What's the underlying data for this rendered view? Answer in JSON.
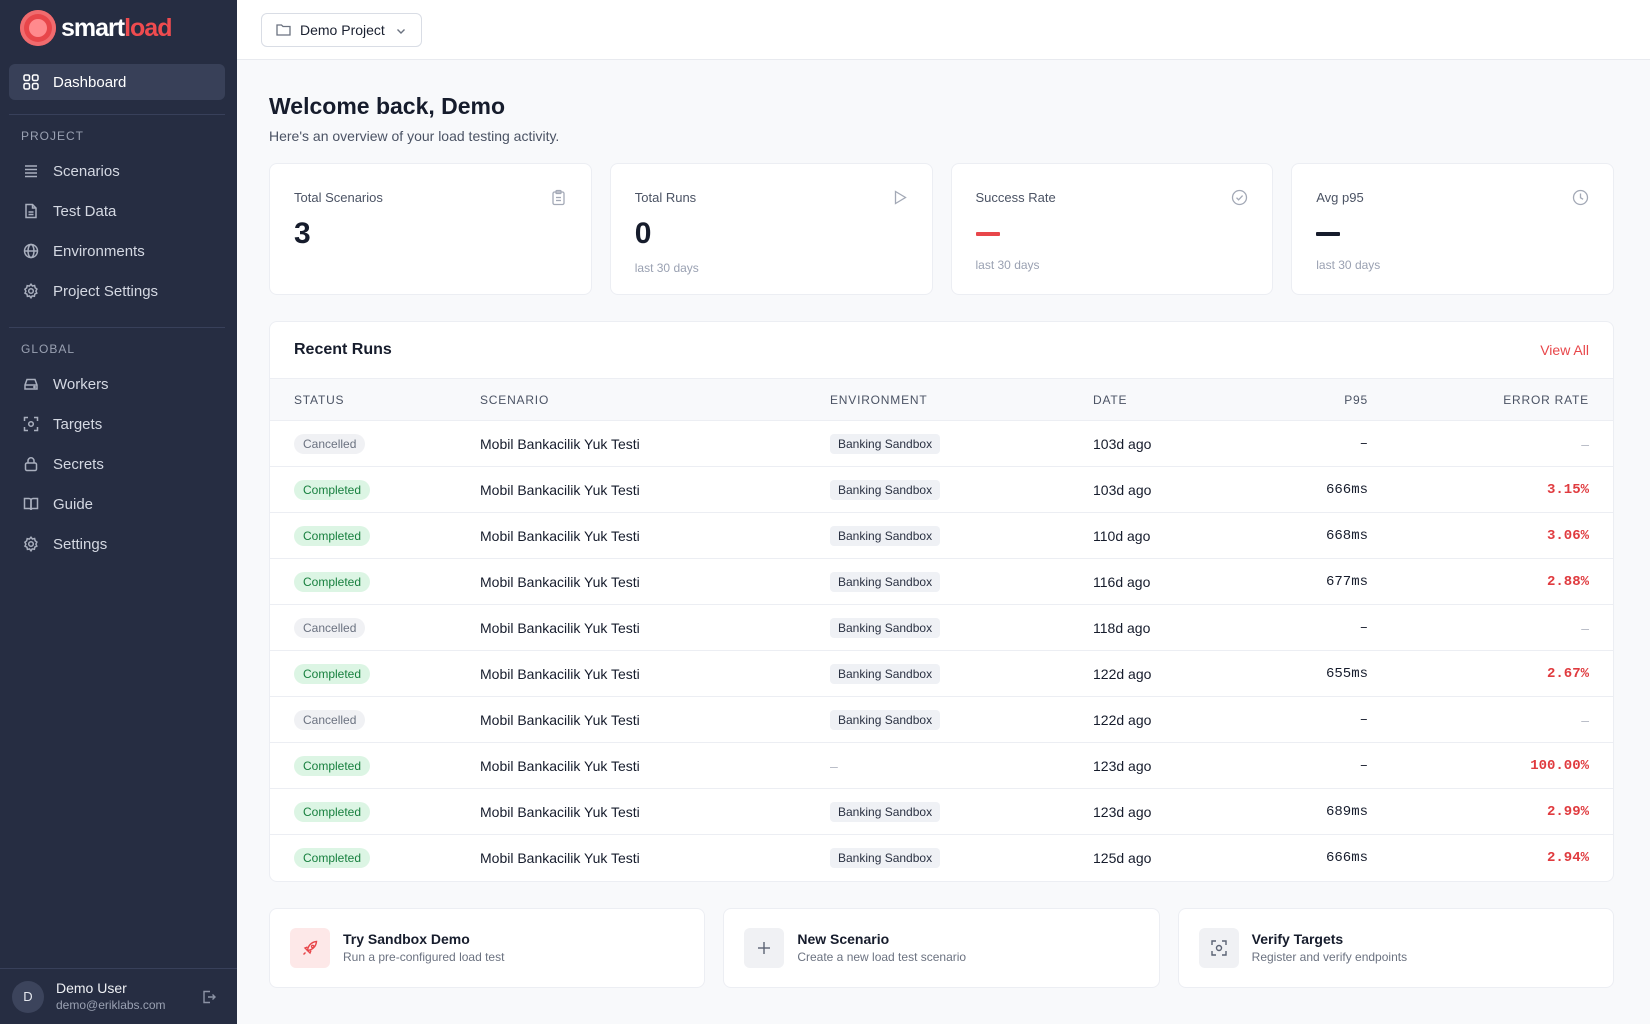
{
  "brand": {
    "name_part1": "smart",
    "name_part2": "load",
    "accent": "#e8464a"
  },
  "sidebar": {
    "dashboard": {
      "label": "Dashboard",
      "icon": "grid-icon"
    },
    "project_section": "PROJECT",
    "project_items": [
      {
        "label": "Scenarios",
        "icon": "list-icon"
      },
      {
        "label": "Test Data",
        "icon": "file-icon"
      },
      {
        "label": "Environments",
        "icon": "globe-icon"
      },
      {
        "label": "Project Settings",
        "icon": "gear-icon"
      }
    ],
    "global_section": "GLOBAL",
    "global_items": [
      {
        "label": "Workers",
        "icon": "server-icon"
      },
      {
        "label": "Targets",
        "icon": "scan-icon"
      },
      {
        "label": "Secrets",
        "icon": "lock-icon"
      },
      {
        "label": "Guide",
        "icon": "book-icon"
      },
      {
        "label": "Settings",
        "icon": "gear-icon"
      }
    ],
    "user": {
      "initial": "D",
      "name": "Demo User",
      "email": "demo@eriklabs.com"
    }
  },
  "topbar": {
    "project": "Demo Project"
  },
  "welcome": {
    "title": "Welcome back, Demo",
    "subtitle": "Here's an overview of your load testing activity."
  },
  "stats": [
    {
      "label": "Total Scenarios",
      "value": "3",
      "sub": "",
      "icon": "clipboard-icon"
    },
    {
      "label": "Total Runs",
      "value": "0",
      "sub": "last 30 days",
      "icon": "play-icon"
    },
    {
      "label": "Success Rate",
      "value": "—",
      "sub": "last 30 days",
      "icon": "check-circle-icon",
      "dash_color": "#e8464a"
    },
    {
      "label": "Avg p95",
      "value": "—",
      "sub": "last 30 days",
      "icon": "clock-icon",
      "dash_color": "#161c2c"
    }
  ],
  "recent_runs": {
    "title": "Recent Runs",
    "view_all": "View All",
    "columns": {
      "status": "STATUS",
      "scenario": "SCENARIO",
      "environment": "ENVIRONMENT",
      "date": "DATE",
      "p95": "P95",
      "error_rate": "ERROR RATE"
    },
    "rows": [
      {
        "status": "Cancelled",
        "scenario": "Mobil Bankacilik Yuk Testi",
        "environment": "Banking Sandbox",
        "date": "103d ago",
        "p95": "–",
        "error_rate": "–"
      },
      {
        "status": "Completed",
        "scenario": "Mobil Bankacilik Yuk Testi",
        "environment": "Banking Sandbox",
        "date": "103d ago",
        "p95": "666ms",
        "error_rate": "3.15%"
      },
      {
        "status": "Completed",
        "scenario": "Mobil Bankacilik Yuk Testi",
        "environment": "Banking Sandbox",
        "date": "110d ago",
        "p95": "668ms",
        "error_rate": "3.06%"
      },
      {
        "status": "Completed",
        "scenario": "Mobil Bankacilik Yuk Testi",
        "environment": "Banking Sandbox",
        "date": "116d ago",
        "p95": "677ms",
        "error_rate": "2.88%"
      },
      {
        "status": "Cancelled",
        "scenario": "Mobil Bankacilik Yuk Testi",
        "environment": "Banking Sandbox",
        "date": "118d ago",
        "p95": "–",
        "error_rate": "–"
      },
      {
        "status": "Completed",
        "scenario": "Mobil Bankacilik Yuk Testi",
        "environment": "Banking Sandbox",
        "date": "122d ago",
        "p95": "655ms",
        "error_rate": "2.67%"
      },
      {
        "status": "Cancelled",
        "scenario": "Mobil Bankacilik Yuk Testi",
        "environment": "Banking Sandbox",
        "date": "122d ago",
        "p95": "–",
        "error_rate": "–"
      },
      {
        "status": "Completed",
        "scenario": "Mobil Bankacilik Yuk Testi",
        "environment": "–",
        "date": "123d ago",
        "p95": "–",
        "error_rate": "100.00%"
      },
      {
        "status": "Completed",
        "scenario": "Mobil Bankacilik Yuk Testi",
        "environment": "Banking Sandbox",
        "date": "123d ago",
        "p95": "689ms",
        "error_rate": "2.99%"
      },
      {
        "status": "Completed",
        "scenario": "Mobil Bankacilik Yuk Testi",
        "environment": "Banking Sandbox",
        "date": "125d ago",
        "p95": "666ms",
        "error_rate": "2.94%"
      }
    ]
  },
  "quick_actions": [
    {
      "title": "Try Sandbox Demo",
      "subtitle": "Run a pre-configured load test",
      "icon": "rocket-icon"
    },
    {
      "title": "New Scenario",
      "subtitle": "Create a new load test scenario",
      "icon": "plus-icon"
    },
    {
      "title": "Verify Targets",
      "subtitle": "Register and verify endpoints",
      "icon": "scan-icon"
    }
  ]
}
